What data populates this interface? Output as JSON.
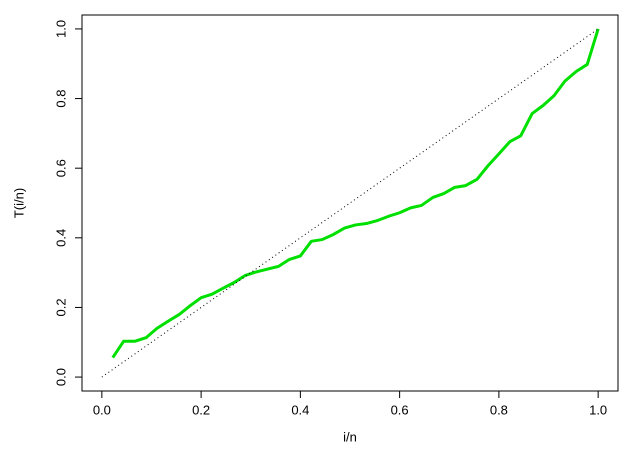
{
  "chart_data": {
    "type": "line",
    "xlabel": "i/n",
    "ylabel": "T(i/n)",
    "xlim": [
      -0.04,
      1.04
    ],
    "ylim": [
      -0.04,
      1.04
    ],
    "xticks": [
      {
        "value": 0,
        "label": "0.0"
      },
      0.2,
      0.4,
      0.6,
      0.8,
      {
        "value": 1,
        "label": "1.0"
      }
    ],
    "yticks": [
      {
        "value": 0,
        "label": "0.0"
      },
      0.2,
      0.4,
      0.6,
      0.8,
      {
        "value": 1,
        "label": "1.0"
      }
    ],
    "series": [
      {
        "color": "#00e000",
        "style": "solid",
        "x": [
          0.022,
          0.044,
          0.067,
          0.089,
          0.111,
          0.133,
          0.156,
          0.178,
          0.2,
          0.222,
          0.244,
          0.267,
          0.289,
          0.311,
          0.333,
          0.356,
          0.378,
          0.4,
          0.422,
          0.444,
          0.467,
          0.489,
          0.511,
          0.533,
          0.556,
          0.578,
          0.6,
          0.622,
          0.644,
          0.667,
          0.689,
          0.711,
          0.733,
          0.756,
          0.778,
          0.8,
          0.822,
          0.844,
          0.867,
          0.889,
          0.911,
          0.933,
          0.956,
          0.978,
          1.0
        ],
        "values": [
          0.056,
          0.103,
          0.103,
          0.113,
          0.14,
          0.16,
          0.18,
          0.205,
          0.228,
          0.238,
          0.255,
          0.272,
          0.292,
          0.302,
          0.31,
          0.318,
          0.338,
          0.348,
          0.39,
          0.395,
          0.41,
          0.428,
          0.437,
          0.441,
          0.45,
          0.462,
          0.472,
          0.486,
          0.493,
          0.516,
          0.527,
          0.545,
          0.55,
          0.568,
          0.607,
          0.641,
          0.676,
          0.693,
          0.757,
          0.78,
          0.808,
          0.85,
          0.878,
          0.898,
          1.0
        ]
      },
      {
        "color": "#000000",
        "style": "dotted",
        "x": [
          0,
          1
        ],
        "values": [
          0,
          1
        ]
      }
    ]
  }
}
